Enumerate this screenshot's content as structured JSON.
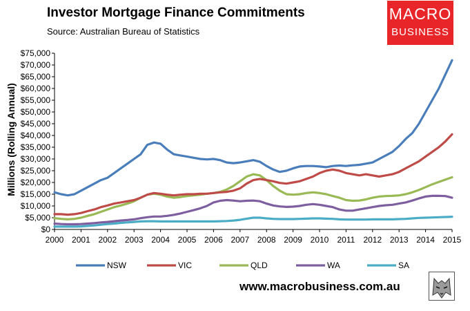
{
  "header": {
    "title": "Investor Mortgage Finance Commitments",
    "subtitle": "Source: Australian Bureau of Statistics"
  },
  "logo": {
    "line1": "MACRO",
    "line2": "BUSINESS",
    "color": "#e8262a"
  },
  "footer": {
    "website": "www.macrobusiness.com.au"
  },
  "chart_data": {
    "type": "line",
    "ylabel": "Millions (Rolling Annual)",
    "ylim": [
      0,
      75000
    ],
    "xlim": [
      2000,
      2015
    ],
    "yticks": [
      "$0",
      "$5,000",
      "$10,000",
      "$15,000",
      "$20,000",
      "$25,000",
      "$30,000",
      "$35,000",
      "$40,000",
      "$45,000",
      "$50,000",
      "$55,000",
      "$60,000",
      "$65,000",
      "$70,000",
      "$75,000"
    ],
    "ytick_values": [
      0,
      5000,
      10000,
      15000,
      20000,
      25000,
      30000,
      35000,
      40000,
      45000,
      50000,
      55000,
      60000,
      65000,
      70000,
      75000
    ],
    "xticks": [
      "2000",
      "2001",
      "2002",
      "2003",
      "2004",
      "2005",
      "2006",
      "2007",
      "2008",
      "2009",
      "2010",
      "2011",
      "2012",
      "2013",
      "2014",
      "2015"
    ],
    "xtick_values": [
      2000,
      2001,
      2002,
      2003,
      2004,
      2005,
      2006,
      2007,
      2008,
      2009,
      2010,
      2011,
      2012,
      2013,
      2014,
      2015
    ],
    "grid": false,
    "legend_position": "bottom",
    "series": [
      {
        "name": "NSW",
        "color": "#4a7ebb",
        "x": [
          2000.0,
          2000.25,
          2000.5,
          2000.75,
          2001.0,
          2001.25,
          2001.5,
          2001.75,
          2002.0,
          2002.25,
          2002.5,
          2002.75,
          2003.0,
          2003.25,
          2003.5,
          2003.75,
          2004.0,
          2004.25,
          2004.5,
          2004.75,
          2005.0,
          2005.25,
          2005.5,
          2005.75,
          2006.0,
          2006.25,
          2006.5,
          2006.75,
          2007.0,
          2007.25,
          2007.5,
          2007.75,
          2008.0,
          2008.25,
          2008.5,
          2008.75,
          2009.0,
          2009.25,
          2009.5,
          2009.75,
          2010.0,
          2010.25,
          2010.5,
          2010.75,
          2011.0,
          2011.25,
          2011.5,
          2011.75,
          2012.0,
          2012.25,
          2012.5,
          2012.75,
          2013.0,
          2013.25,
          2013.5,
          2013.75,
          2014.0,
          2014.25,
          2014.5,
          2014.75,
          2015.0
        ],
        "values": [
          15800,
          15000,
          14500,
          15000,
          16500,
          18000,
          19500,
          21000,
          22000,
          24000,
          26000,
          28000,
          30000,
          32000,
          36000,
          37000,
          36500,
          34000,
          32000,
          31500,
          31000,
          30500,
          30000,
          29800,
          30000,
          29500,
          28500,
          28200,
          28500,
          29000,
          29500,
          28800,
          27000,
          25500,
          24500,
          25000,
          26000,
          26800,
          27000,
          27000,
          26800,
          26500,
          27000,
          27200,
          27000,
          27300,
          27500,
          28000,
          28500,
          30000,
          31500,
          33000,
          35500,
          38500,
          41000,
          45000,
          50000,
          55000,
          60000,
          66000,
          72000
        ]
      },
      {
        "name": "VIC",
        "color": "#be4b48",
        "x": [
          2000.0,
          2000.25,
          2000.5,
          2000.75,
          2001.0,
          2001.25,
          2001.5,
          2001.75,
          2002.0,
          2002.25,
          2002.5,
          2002.75,
          2003.0,
          2003.25,
          2003.5,
          2003.75,
          2004.0,
          2004.25,
          2004.5,
          2004.75,
          2005.0,
          2005.25,
          2005.5,
          2005.75,
          2006.0,
          2006.25,
          2006.5,
          2006.75,
          2007.0,
          2007.25,
          2007.5,
          2007.75,
          2008.0,
          2008.25,
          2008.5,
          2008.75,
          2009.0,
          2009.25,
          2009.5,
          2009.75,
          2010.0,
          2010.25,
          2010.5,
          2010.75,
          2011.0,
          2011.25,
          2011.5,
          2011.75,
          2012.0,
          2012.25,
          2012.5,
          2012.75,
          2013.0,
          2013.25,
          2013.5,
          2013.75,
          2014.0,
          2014.25,
          2014.5,
          2014.75,
          2015.0
        ],
        "values": [
          6500,
          6500,
          6300,
          6500,
          7000,
          7800,
          8500,
          9500,
          10200,
          11000,
          11500,
          12000,
          12500,
          13500,
          14800,
          15500,
          15200,
          14800,
          14500,
          14800,
          15000,
          15000,
          15200,
          15200,
          15500,
          15800,
          16000,
          16500,
          17500,
          19500,
          21000,
          21500,
          21000,
          20500,
          19800,
          19500,
          20000,
          20500,
          21500,
          22500,
          24000,
          25000,
          25500,
          25000,
          24000,
          23500,
          23000,
          23500,
          23000,
          22500,
          23000,
          23500,
          24500,
          26000,
          27500,
          29000,
          31000,
          33000,
          35000,
          37500,
          40500
        ]
      },
      {
        "name": "QLD",
        "color": "#98b954",
        "x": [
          2000.0,
          2000.25,
          2000.5,
          2000.75,
          2001.0,
          2001.25,
          2001.5,
          2001.75,
          2002.0,
          2002.25,
          2002.5,
          2002.75,
          2003.0,
          2003.25,
          2003.5,
          2003.75,
          2004.0,
          2004.25,
          2004.5,
          2004.75,
          2005.0,
          2005.25,
          2005.5,
          2005.75,
          2006.0,
          2006.25,
          2006.5,
          2006.75,
          2007.0,
          2007.25,
          2007.5,
          2007.75,
          2008.0,
          2008.25,
          2008.5,
          2008.75,
          2009.0,
          2009.25,
          2009.5,
          2009.75,
          2010.0,
          2010.25,
          2010.5,
          2010.75,
          2011.0,
          2011.25,
          2011.5,
          2011.75,
          2012.0,
          2012.25,
          2012.5,
          2012.75,
          2013.0,
          2013.25,
          2013.5,
          2013.75,
          2014.0,
          2014.25,
          2014.5,
          2014.75,
          2015.0
        ],
        "values": [
          4800,
          4500,
          4300,
          4500,
          5000,
          5800,
          6500,
          7500,
          8500,
          9500,
          10200,
          11000,
          12000,
          13500,
          14800,
          15200,
          14800,
          14000,
          13500,
          13800,
          14200,
          14500,
          14800,
          15200,
          15500,
          16000,
          17000,
          18500,
          20500,
          22500,
          23500,
          23000,
          21000,
          18500,
          16500,
          15000,
          14800,
          15000,
          15500,
          15800,
          15500,
          15000,
          14200,
          13500,
          12500,
          12200,
          12300,
          12800,
          13500,
          14000,
          14200,
          14300,
          14500,
          15000,
          15800,
          16800,
          18000,
          19200,
          20200,
          21200,
          22200
        ]
      },
      {
        "name": "WA",
        "color": "#7d5fa0",
        "x": [
          2000.0,
          2000.25,
          2000.5,
          2000.75,
          2001.0,
          2001.25,
          2001.5,
          2001.75,
          2002.0,
          2002.25,
          2002.5,
          2002.75,
          2003.0,
          2003.25,
          2003.5,
          2003.75,
          2004.0,
          2004.25,
          2004.5,
          2004.75,
          2005.0,
          2005.25,
          2005.5,
          2005.75,
          2006.0,
          2006.25,
          2006.5,
          2006.75,
          2007.0,
          2007.25,
          2007.5,
          2007.75,
          2008.0,
          2008.25,
          2008.5,
          2008.75,
          2009.0,
          2009.25,
          2009.5,
          2009.75,
          2010.0,
          2010.25,
          2010.5,
          2010.75,
          2011.0,
          2011.25,
          2011.5,
          2011.75,
          2012.0,
          2012.25,
          2012.5,
          2012.75,
          2013.0,
          2013.25,
          2013.5,
          2013.75,
          2014.0,
          2014.25,
          2014.5,
          2014.75,
          2015.0
        ],
        "values": [
          2500,
          2300,
          2200,
          2200,
          2300,
          2500,
          2700,
          3000,
          3200,
          3500,
          3800,
          4000,
          4300,
          4800,
          5200,
          5500,
          5500,
          5800,
          6200,
          6800,
          7500,
          8200,
          9000,
          10000,
          11500,
          12200,
          12500,
          12300,
          12000,
          12200,
          12300,
          12000,
          11000,
          10200,
          9800,
          9600,
          9700,
          10000,
          10500,
          10800,
          10500,
          10000,
          9500,
          8500,
          8000,
          8000,
          8500,
          9000,
          9500,
          10000,
          10300,
          10500,
          11000,
          11500,
          12300,
          13200,
          14000,
          14300,
          14300,
          14200,
          13500
        ]
      },
      {
        "name": "SA",
        "color": "#4bacc6",
        "x": [
          2000.0,
          2000.25,
          2000.5,
          2000.75,
          2001.0,
          2001.25,
          2001.5,
          2001.75,
          2002.0,
          2002.25,
          2002.5,
          2002.75,
          2003.0,
          2003.25,
          2003.5,
          2003.75,
          2004.0,
          2004.25,
          2004.5,
          2004.75,
          2005.0,
          2005.25,
          2005.5,
          2005.75,
          2006.0,
          2006.25,
          2006.5,
          2006.75,
          2007.0,
          2007.25,
          2007.5,
          2007.75,
          2008.0,
          2008.25,
          2008.5,
          2008.75,
          2009.0,
          2009.25,
          2009.5,
          2009.75,
          2010.0,
          2010.25,
          2010.5,
          2010.75,
          2011.0,
          2011.25,
          2011.5,
          2011.75,
          2012.0,
          2012.25,
          2012.5,
          2012.75,
          2013.0,
          2013.25,
          2013.5,
          2013.75,
          2014.0,
          2014.25,
          2014.5,
          2014.75,
          2015.0
        ],
        "values": [
          1200,
          1200,
          1200,
          1200,
          1300,
          1500,
          1700,
          2000,
          2300,
          2500,
          2800,
          3000,
          3200,
          3400,
          3500,
          3500,
          3400,
          3400,
          3400,
          3400,
          3400,
          3400,
          3400,
          3400,
          3400,
          3500,
          3600,
          3800,
          4100,
          4600,
          5000,
          5000,
          4700,
          4500,
          4400,
          4400,
          4400,
          4500,
          4600,
          4700,
          4700,
          4600,
          4500,
          4300,
          4200,
          4200,
          4200,
          4200,
          4300,
          4300,
          4300,
          4300,
          4400,
          4500,
          4700,
          4900,
          5000,
          5100,
          5200,
          5300,
          5400
        ]
      }
    ]
  }
}
